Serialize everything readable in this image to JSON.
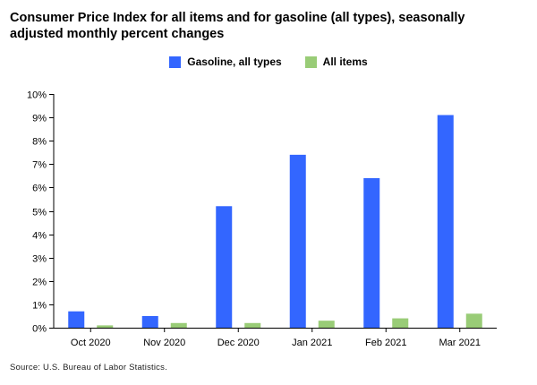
{
  "colors": {
    "gasoline": "#3366ff",
    "all_items": "#99cc77",
    "axis": "#000000",
    "tick_text": "#000000"
  },
  "title": "Consumer Price Index for all items and for gasoline (all types), seasonally adjusted monthly percent changes",
  "source": "Source: U.S. Bureau of Labor Statistics.",
  "chart_data": {
    "type": "bar",
    "title": "Consumer Price Index for all items and for gasoline (all types), seasonally adjusted monthly percent changes",
    "xlabel": "",
    "ylabel": "",
    "categories": [
      "Oct 2020",
      "Nov 2020",
      "Dec 2020",
      "Jan 2021",
      "Feb 2021",
      "Mar 2021"
    ],
    "series": [
      {
        "name": "Gasoline, all types",
        "values": [
          0.7,
          0.5,
          5.2,
          7.4,
          6.4,
          9.1
        ]
      },
      {
        "name": "All items",
        "values": [
          0.1,
          0.2,
          0.2,
          0.3,
          0.4,
          0.6
        ]
      }
    ],
    "ylim": [
      0,
      10
    ],
    "yticks": [
      "0%",
      "1%",
      "2%",
      "3%",
      "4%",
      "5%",
      "6%",
      "7%",
      "8%",
      "9%",
      "10%"
    ],
    "grid": false,
    "legend_position": "top-center"
  }
}
